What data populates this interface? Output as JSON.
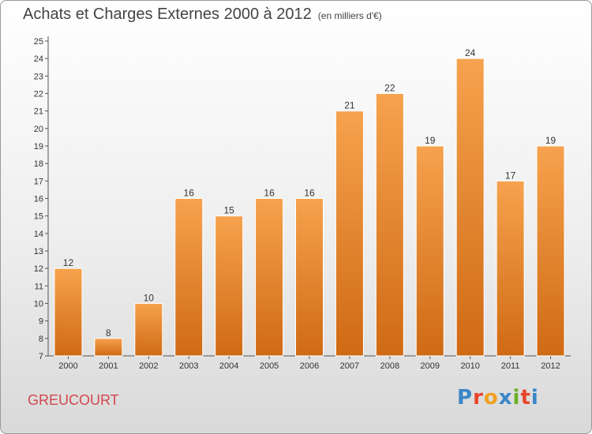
{
  "title": "Achats et Charges Externes 2000 à 2012",
  "subtitle": "(en milliers d'€)",
  "place_label": "GREUCOURT",
  "brand": {
    "text": "Proxiti",
    "letter_colors": [
      "#3a86c8",
      "#e8452c",
      "#f0a020",
      "#3a86c8",
      "#6ab023",
      "#e8452c",
      "#3a86c8"
    ]
  },
  "colors": {
    "bar_light": "#f6a24e",
    "bar_dark": "#d06a14",
    "axis": "#555555",
    "grid": "#dddddd",
    "label": "#333333"
  },
  "chart_data": {
    "type": "bar",
    "title": "Achats et Charges Externes 2000 à 2012",
    "subtitle": "(en milliers d'€)",
    "categories": [
      "2000",
      "2001",
      "2002",
      "2003",
      "2004",
      "2005",
      "2006",
      "2007",
      "2008",
      "2009",
      "2010",
      "2011",
      "2012"
    ],
    "values": [
      12,
      8,
      10,
      16,
      15,
      16,
      16,
      21,
      22,
      19,
      24,
      17,
      19
    ],
    "ylim": [
      7,
      25
    ],
    "yticks": [
      7,
      8,
      9,
      10,
      11,
      12,
      13,
      14,
      15,
      16,
      17,
      18,
      19,
      20,
      21,
      22,
      23,
      24,
      25
    ],
    "grid": false,
    "data_labels": true,
    "xlabel": "",
    "ylabel": ""
  }
}
